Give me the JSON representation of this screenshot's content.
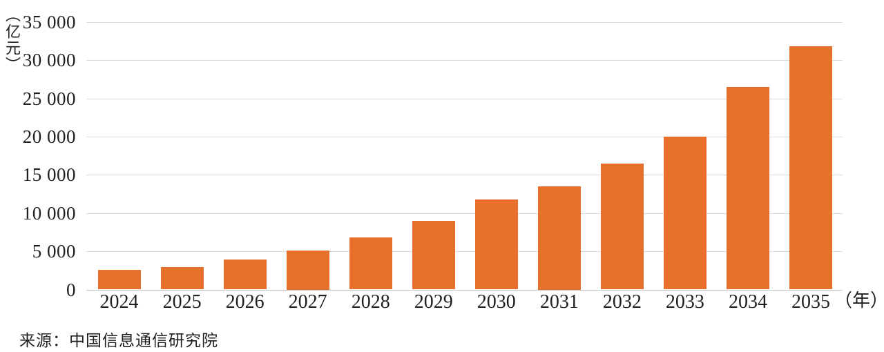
{
  "chart_data": {
    "type": "bar",
    "title": "",
    "unit_label": "（亿元）",
    "x_suffix": "（年）",
    "categories": [
      "2024",
      "2025",
      "2026",
      "2027",
      "2028",
      "2029",
      "2030",
      "2031",
      "2032",
      "2033",
      "2034",
      "2035"
    ],
    "values": [
      2600,
      2900,
      3900,
      5100,
      6800,
      9000,
      11800,
      13500,
      16500,
      20000,
      26500,
      31800
    ],
    "xlabel": "年",
    "ylabel": "亿元",
    "ylim": [
      0,
      35000
    ],
    "ytick_step": 5000,
    "ytick_labels": [
      "0",
      "5 000",
      "10 000",
      "15 000",
      "20 000",
      "25 000",
      "30 000",
      "35 000"
    ],
    "grid": true,
    "legend": "none",
    "bar_color": "#e7702d",
    "gridline_color": "#d9d9d9"
  },
  "source": {
    "text": "来源：中国信息通信研究院"
  }
}
